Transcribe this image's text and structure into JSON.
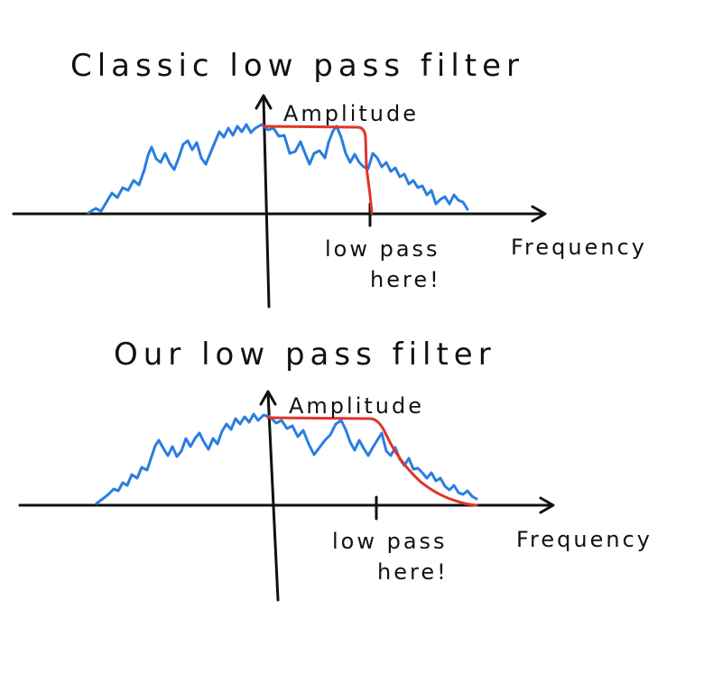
{
  "colors": {
    "ink": "#111111",
    "signal": "#2a7de1",
    "filter": "#e0342a",
    "background": "#ffffff"
  },
  "panels": [
    {
      "title": "Classic low pass filter",
      "y_axis_label": "Amplitude",
      "x_axis_label": "Frequency",
      "cutoff_label_line1": "low pass",
      "cutoff_label_line2": "here!",
      "filter_shape": "sharp"
    },
    {
      "title": "Our low pass filter",
      "y_axis_label": "Amplitude",
      "x_axis_label": "Frequency",
      "cutoff_label_line1": "low pass",
      "cutoff_label_line2": "here!",
      "filter_shape": "gradual"
    }
  ]
}
